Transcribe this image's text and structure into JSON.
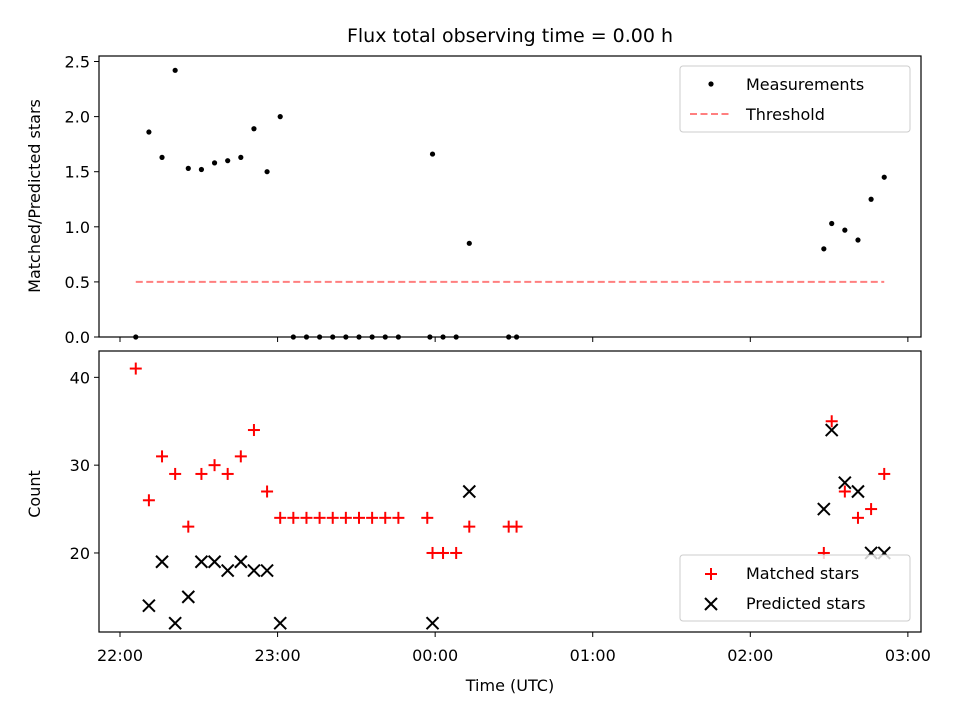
{
  "chart_data": [
    {
      "type": "scatter",
      "title": "Flux total observing time = 0.00 h",
      "xlabel": "",
      "ylabel": "Matched/Predicted stars",
      "xlim": [
        "21:52",
        "03:05"
      ],
      "ylim": [
        0,
        2.55
      ],
      "x_tick_labels": [
        "22:00",
        "23:00",
        "00:00",
        "01:00",
        "02:00",
        "03:00"
      ],
      "y_ticks": [
        "0.0",
        "0.5",
        "1.0",
        "1.5",
        "2.0",
        "2.5"
      ],
      "legend_position": "top-right",
      "series": [
        {
          "name": "Measurements",
          "marker": "dot",
          "color": "#000000",
          "points": [
            [
              "22:06",
              0.0
            ],
            [
              "22:11",
              1.86
            ],
            [
              "22:16",
              1.63
            ],
            [
              "22:21",
              2.42
            ],
            [
              "22:26",
              1.53
            ],
            [
              "22:31",
              1.52
            ],
            [
              "22:36",
              1.58
            ],
            [
              "22:41",
              1.6
            ],
            [
              "22:46",
              1.63
            ],
            [
              "22:51",
              1.89
            ],
            [
              "22:56",
              1.5
            ],
            [
              "23:01",
              2.0
            ],
            [
              "23:06",
              0.0
            ],
            [
              "23:11",
              0.0
            ],
            [
              "23:16",
              0.0
            ],
            [
              "23:21",
              0.0
            ],
            [
              "23:26",
              0.0
            ],
            [
              "23:31",
              0.0
            ],
            [
              "23:36",
              0.0
            ],
            [
              "23:41",
              0.0
            ],
            [
              "23:46",
              0.0
            ],
            [
              "23:58",
              0.0
            ],
            [
              "23:59",
              1.66
            ],
            [
              "00:03",
              0.0
            ],
            [
              "00:08",
              0.0
            ],
            [
              "00:13",
              0.85
            ],
            [
              "00:28",
              0.0
            ],
            [
              "00:31",
              0.0
            ],
            [
              "02:28",
              0.8
            ],
            [
              "02:31",
              1.03
            ],
            [
              "02:36",
              0.97
            ],
            [
              "02:41",
              0.88
            ],
            [
              "02:46",
              1.25
            ],
            [
              "02:51",
              1.45
            ]
          ]
        },
        {
          "name": "Threshold",
          "type": "line",
          "style": "dashed",
          "color": "#ff7f7f",
          "points": [
            [
              "22:06",
              0.5
            ],
            [
              "02:51",
              0.5
            ]
          ]
        }
      ]
    },
    {
      "type": "scatter",
      "title": "",
      "xlabel": "Time (UTC)",
      "ylabel": "Count",
      "xlim": [
        "21:52",
        "03:05"
      ],
      "ylim": [
        11,
        43
      ],
      "x_tick_labels": [
        "22:00",
        "23:00",
        "00:00",
        "01:00",
        "02:00",
        "03:00"
      ],
      "y_ticks": [
        "20",
        "30",
        "40"
      ],
      "legend_position": "bottom-right",
      "series": [
        {
          "name": "Matched stars",
          "marker": "plus",
          "color": "#ff0000",
          "points": [
            [
              "22:06",
              41
            ],
            [
              "22:11",
              26
            ],
            [
              "22:16",
              31
            ],
            [
              "22:21",
              29
            ],
            [
              "22:26",
              23
            ],
            [
              "22:31",
              29
            ],
            [
              "22:36",
              30
            ],
            [
              "22:41",
              29
            ],
            [
              "22:46",
              31
            ],
            [
              "22:51",
              34
            ],
            [
              "22:56",
              27
            ],
            [
              "23:01",
              24
            ],
            [
              "23:06",
              24
            ],
            [
              "23:11",
              24
            ],
            [
              "23:16",
              24
            ],
            [
              "23:21",
              24
            ],
            [
              "23:26",
              24
            ],
            [
              "23:31",
              24
            ],
            [
              "23:36",
              24
            ],
            [
              "23:41",
              24
            ],
            [
              "23:46",
              24
            ],
            [
              "23:57",
              24
            ],
            [
              "23:59",
              20
            ],
            [
              "00:03",
              20
            ],
            [
              "00:08",
              20
            ],
            [
              "00:13",
              23
            ],
            [
              "00:28",
              23
            ],
            [
              "00:31",
              23
            ],
            [
              "02:28",
              20
            ],
            [
              "02:31",
              35
            ],
            [
              "02:36",
              27
            ],
            [
              "02:41",
              24
            ],
            [
              "02:46",
              25
            ],
            [
              "02:51",
              29
            ]
          ]
        },
        {
          "name": "Predicted stars",
          "marker": "x",
          "color": "#000000",
          "points": [
            [
              "22:11",
              14
            ],
            [
              "22:16",
              19
            ],
            [
              "22:21",
              12
            ],
            [
              "22:26",
              15
            ],
            [
              "22:31",
              19
            ],
            [
              "22:36",
              19
            ],
            [
              "22:41",
              18
            ],
            [
              "22:46",
              19
            ],
            [
              "22:51",
              18
            ],
            [
              "22:56",
              18
            ],
            [
              "23:01",
              12
            ],
            [
              "23:59",
              12
            ],
            [
              "00:13",
              27
            ],
            [
              "02:28",
              25
            ],
            [
              "02:31",
              34
            ],
            [
              "02:36",
              28
            ],
            [
              "02:41",
              27
            ],
            [
              "02:46",
              20
            ],
            [
              "02:51",
              20
            ]
          ]
        }
      ]
    }
  ]
}
